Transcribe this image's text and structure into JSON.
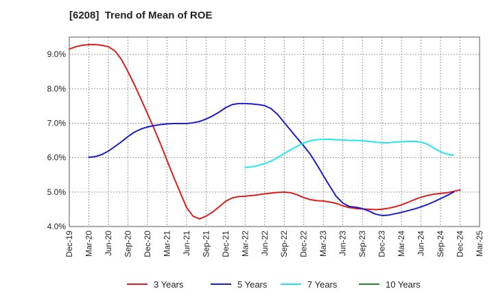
{
  "chart_data": {
    "type": "line",
    "title": "[6208]  Trend of Mean of ROE",
    "ylim": [
      4.0,
      9.5
    ],
    "y_ticks": [
      "4.0%",
      "5.0%",
      "6.0%",
      "7.0%",
      "8.0%",
      "9.0%"
    ],
    "y_tick_values": [
      4.0,
      5.0,
      6.0,
      7.0,
      8.0,
      9.0
    ],
    "x_ticks": [
      "Dec-19",
      "Mar-20",
      "Jun-20",
      "Sep-20",
      "Dec-20",
      "Mar-21",
      "Jun-21",
      "Sep-21",
      "Dec-21",
      "Mar-22",
      "Jun-22",
      "Sep-22",
      "Dec-22",
      "Mar-23",
      "Jun-23",
      "Sep-23",
      "Dec-23",
      "Mar-24",
      "Jun-24",
      "Sep-24",
      "Dec-24",
      "Mar-25"
    ],
    "x_tick_values": [
      0,
      3,
      6,
      9,
      12,
      15,
      18,
      21,
      24,
      27,
      30,
      33,
      36,
      39,
      42,
      45,
      48,
      51,
      54,
      57,
      60,
      63
    ],
    "x_unit": "months from Dec-19",
    "grid": true,
    "legend_position": "bottom",
    "series": [
      {
        "name": "3 Years",
        "color": "#dd1c1c",
        "points": [
          [
            0,
            9.15
          ],
          [
            1,
            9.22
          ],
          [
            2,
            9.26
          ],
          [
            3,
            9.28
          ],
          [
            4,
            9.28
          ],
          [
            5,
            9.26
          ],
          [
            6,
            9.22
          ],
          [
            7,
            9.1
          ],
          [
            8,
            8.85
          ],
          [
            9,
            8.5
          ],
          [
            10,
            8.12
          ],
          [
            11,
            7.7
          ],
          [
            12,
            7.28
          ],
          [
            13,
            6.85
          ],
          [
            14,
            6.4
          ],
          [
            15,
            5.92
          ],
          [
            16,
            5.45
          ],
          [
            17,
            5.0
          ],
          [
            18,
            4.55
          ],
          [
            19,
            4.3
          ],
          [
            20,
            4.22
          ],
          [
            21,
            4.3
          ],
          [
            22,
            4.42
          ],
          [
            23,
            4.57
          ],
          [
            24,
            4.73
          ],
          [
            25,
            4.83
          ],
          [
            26,
            4.87
          ],
          [
            27,
            4.88
          ],
          [
            28,
            4.9
          ],
          [
            29,
            4.92
          ],
          [
            30,
            4.95
          ],
          [
            31,
            4.97
          ],
          [
            32,
            4.99
          ],
          [
            33,
            5.0
          ],
          [
            34,
            4.98
          ],
          [
            35,
            4.92
          ],
          [
            36,
            4.84
          ],
          [
            37,
            4.78
          ],
          [
            38,
            4.75
          ],
          [
            39,
            4.74
          ],
          [
            40,
            4.71
          ],
          [
            41,
            4.67
          ],
          [
            42,
            4.6
          ],
          [
            43,
            4.55
          ],
          [
            44,
            4.52
          ],
          [
            45,
            4.51
          ],
          [
            46,
            4.5
          ],
          [
            47,
            4.49
          ],
          [
            48,
            4.5
          ],
          [
            49,
            4.53
          ],
          [
            50,
            4.57
          ],
          [
            51,
            4.63
          ],
          [
            52,
            4.7
          ],
          [
            53,
            4.78
          ],
          [
            54,
            4.85
          ],
          [
            55,
            4.9
          ],
          [
            56,
            4.94
          ],
          [
            57,
            4.96
          ],
          [
            58,
            4.98
          ],
          [
            59,
            5.02
          ],
          [
            60,
            5.06
          ]
        ]
      },
      {
        "name": "5 Years",
        "color": "#1b1bcf",
        "points": [
          [
            3,
            6.01
          ],
          [
            4,
            6.03
          ],
          [
            5,
            6.09
          ],
          [
            6,
            6.19
          ],
          [
            7,
            6.32
          ],
          [
            8,
            6.46
          ],
          [
            9,
            6.61
          ],
          [
            10,
            6.74
          ],
          [
            11,
            6.83
          ],
          [
            12,
            6.89
          ],
          [
            13,
            6.93
          ],
          [
            14,
            6.96
          ],
          [
            15,
            6.98
          ],
          [
            16,
            6.99
          ],
          [
            17,
            6.99
          ],
          [
            18,
            6.99
          ],
          [
            19,
            7.01
          ],
          [
            20,
            7.05
          ],
          [
            21,
            7.12
          ],
          [
            22,
            7.21
          ],
          [
            23,
            7.32
          ],
          [
            24,
            7.45
          ],
          [
            25,
            7.54
          ],
          [
            26,
            7.57
          ],
          [
            27,
            7.57
          ],
          [
            28,
            7.56
          ],
          [
            29,
            7.54
          ],
          [
            30,
            7.51
          ],
          [
            31,
            7.42
          ],
          [
            32,
            7.25
          ],
          [
            33,
            7.02
          ],
          [
            34,
            6.79
          ],
          [
            35,
            6.56
          ],
          [
            36,
            6.34
          ],
          [
            37,
            6.1
          ],
          [
            38,
            5.8
          ],
          [
            39,
            5.48
          ],
          [
            40,
            5.17
          ],
          [
            41,
            4.87
          ],
          [
            42,
            4.68
          ],
          [
            43,
            4.58
          ],
          [
            44,
            4.56
          ],
          [
            45,
            4.52
          ],
          [
            46,
            4.45
          ],
          [
            47,
            4.36
          ],
          [
            48,
            4.32
          ],
          [
            49,
            4.33
          ],
          [
            50,
            4.37
          ],
          [
            51,
            4.41
          ],
          [
            52,
            4.46
          ],
          [
            53,
            4.51
          ],
          [
            54,
            4.57
          ],
          [
            55,
            4.64
          ],
          [
            56,
            4.72
          ],
          [
            57,
            4.81
          ],
          [
            58,
            4.9
          ],
          [
            59,
            5.0
          ]
        ]
      },
      {
        "name": "7 Years",
        "color": "#22e6ee",
        "points": [
          [
            27,
            5.72
          ],
          [
            28,
            5.73
          ],
          [
            29,
            5.77
          ],
          [
            30,
            5.83
          ],
          [
            31,
            5.9
          ],
          [
            32,
            6.0
          ],
          [
            33,
            6.12
          ],
          [
            34,
            6.23
          ],
          [
            35,
            6.33
          ],
          [
            36,
            6.42
          ],
          [
            37,
            6.49
          ],
          [
            38,
            6.52
          ],
          [
            39,
            6.53
          ],
          [
            40,
            6.53
          ],
          [
            41,
            6.52
          ],
          [
            42,
            6.51
          ],
          [
            43,
            6.5
          ],
          [
            44,
            6.5
          ],
          [
            45,
            6.49
          ],
          [
            46,
            6.47
          ],
          [
            47,
            6.45
          ],
          [
            48,
            6.43
          ],
          [
            49,
            6.43
          ],
          [
            50,
            6.45
          ],
          [
            51,
            6.46
          ],
          [
            52,
            6.47
          ],
          [
            53,
            6.47
          ],
          [
            54,
            6.45
          ],
          [
            55,
            6.39
          ],
          [
            56,
            6.27
          ],
          [
            57,
            6.17
          ],
          [
            58,
            6.1
          ],
          [
            59,
            6.07
          ]
        ]
      },
      {
        "name": "10 Years",
        "color": "#1f8a1f",
        "points": []
      }
    ]
  }
}
